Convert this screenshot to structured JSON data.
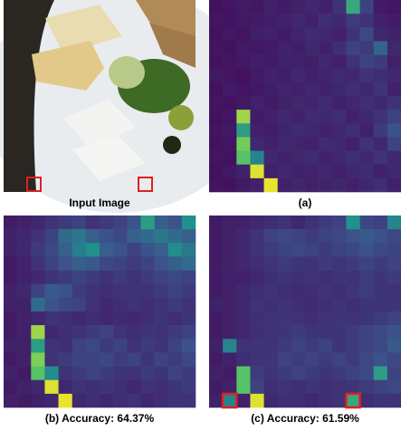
{
  "panels": [
    {
      "caption": "Input Image"
    },
    {
      "caption": "(a)",
      "grid": [
        [
          0.05,
          0.06,
          0.08,
          0.07,
          0.1,
          0.08,
          0.1,
          0.12,
          0.1,
          0.15,
          0.6,
          0.2,
          0.08,
          0.06
        ],
        [
          0.06,
          0.05,
          0.07,
          0.08,
          0.09,
          0.1,
          0.12,
          0.1,
          0.14,
          0.12,
          0.18,
          0.15,
          0.1,
          0.08
        ],
        [
          0.05,
          0.07,
          0.06,
          0.09,
          0.1,
          0.08,
          0.11,
          0.13,
          0.12,
          0.1,
          0.15,
          0.22,
          0.12,
          0.1
        ],
        [
          0.06,
          0.05,
          0.08,
          0.07,
          0.08,
          0.1,
          0.09,
          0.12,
          0.1,
          0.14,
          0.2,
          0.18,
          0.32,
          0.12
        ],
        [
          0.05,
          0.06,
          0.07,
          0.09,
          0.08,
          0.1,
          0.1,
          0.09,
          0.12,
          0.1,
          0.15,
          0.2,
          0.18,
          0.1
        ],
        [
          0.07,
          0.06,
          0.05,
          0.08,
          0.1,
          0.09,
          0.12,
          0.1,
          0.11,
          0.13,
          0.12,
          0.15,
          0.14,
          0.12
        ],
        [
          0.05,
          0.08,
          0.06,
          0.07,
          0.09,
          0.11,
          0.1,
          0.12,
          0.1,
          0.12,
          0.14,
          0.12,
          0.16,
          0.1
        ],
        [
          0.06,
          0.05,
          0.07,
          0.1,
          0.08,
          0.1,
          0.12,
          0.11,
          0.13,
          0.1,
          0.12,
          0.14,
          0.12,
          0.15
        ],
        [
          0.05,
          0.06,
          0.85,
          0.08,
          0.1,
          0.12,
          0.1,
          0.13,
          0.12,
          0.14,
          0.1,
          0.12,
          0.15,
          0.2
        ],
        [
          0.06,
          0.07,
          0.55,
          0.1,
          0.09,
          0.11,
          0.13,
          0.12,
          0.1,
          0.12,
          0.14,
          0.1,
          0.18,
          0.25
        ],
        [
          0.05,
          0.06,
          0.78,
          0.12,
          0.1,
          0.12,
          0.11,
          0.1,
          0.13,
          0.12,
          0.1,
          0.15,
          0.12,
          0.2
        ],
        [
          0.06,
          0.05,
          0.72,
          0.45,
          0.12,
          0.1,
          0.12,
          0.13,
          0.1,
          0.12,
          0.14,
          0.12,
          0.15,
          0.12
        ],
        [
          0.05,
          0.07,
          0.1,
          0.95,
          0.1,
          0.12,
          0.1,
          0.11,
          0.12,
          0.1,
          0.12,
          0.13,
          0.1,
          0.12
        ],
        [
          0.06,
          0.05,
          0.08,
          0.1,
          0.97,
          0.1,
          0.12,
          0.1,
          0.11,
          0.12,
          0.1,
          0.12,
          0.14,
          0.1
        ]
      ]
    },
    {
      "caption": "(b) Accuracy: 64.37%",
      "grid": [
        [
          0.08,
          0.1,
          0.12,
          0.15,
          0.18,
          0.2,
          0.15,
          0.18,
          0.2,
          0.25,
          0.55,
          0.3,
          0.25,
          0.5
        ],
        [
          0.1,
          0.12,
          0.15,
          0.2,
          0.35,
          0.4,
          0.3,
          0.25,
          0.22,
          0.3,
          0.35,
          0.4,
          0.35,
          0.3
        ],
        [
          0.1,
          0.12,
          0.18,
          0.22,
          0.3,
          0.42,
          0.5,
          0.3,
          0.25,
          0.2,
          0.25,
          0.3,
          0.48,
          0.4
        ],
        [
          0.08,
          0.1,
          0.15,
          0.2,
          0.25,
          0.3,
          0.28,
          0.22,
          0.2,
          0.18,
          0.2,
          0.25,
          0.3,
          0.35
        ],
        [
          0.08,
          0.1,
          0.12,
          0.15,
          0.18,
          0.2,
          0.18,
          0.15,
          0.18,
          0.15,
          0.18,
          0.2,
          0.22,
          0.2
        ],
        [
          0.1,
          0.12,
          0.2,
          0.28,
          0.25,
          0.18,
          0.15,
          0.14,
          0.15,
          0.16,
          0.15,
          0.18,
          0.2,
          0.18
        ],
        [
          0.1,
          0.1,
          0.35,
          0.25,
          0.22,
          0.2,
          0.15,
          0.12,
          0.14,
          0.15,
          0.14,
          0.15,
          0.18,
          0.15
        ],
        [
          0.08,
          0.1,
          0.12,
          0.15,
          0.14,
          0.12,
          0.14,
          0.12,
          0.13,
          0.12,
          0.14,
          0.16,
          0.14,
          0.16
        ],
        [
          0.08,
          0.1,
          0.85,
          0.12,
          0.14,
          0.15,
          0.18,
          0.2,
          0.15,
          0.14,
          0.16,
          0.15,
          0.18,
          0.2
        ],
        [
          0.1,
          0.1,
          0.55,
          0.15,
          0.14,
          0.2,
          0.22,
          0.18,
          0.2,
          0.15,
          0.18,
          0.16,
          0.2,
          0.25
        ],
        [
          0.08,
          0.1,
          0.8,
          0.15,
          0.18,
          0.2,
          0.2,
          0.22,
          0.18,
          0.2,
          0.16,
          0.2,
          0.18,
          0.22
        ],
        [
          0.1,
          0.08,
          0.72,
          0.48,
          0.15,
          0.18,
          0.2,
          0.18,
          0.16,
          0.15,
          0.18,
          0.16,
          0.2,
          0.18
        ],
        [
          0.08,
          0.1,
          0.12,
          0.95,
          0.12,
          0.15,
          0.14,
          0.16,
          0.14,
          0.12,
          0.15,
          0.14,
          0.16,
          0.18
        ],
        [
          0.1,
          0.08,
          0.1,
          0.12,
          0.97,
          0.12,
          0.14,
          0.12,
          0.14,
          0.15,
          0.12,
          0.14,
          0.16,
          0.15
        ]
      ]
    },
    {
      "caption": "(c) Accuracy: 61.59%",
      "grid": [
        [
          0.08,
          0.1,
          0.1,
          0.12,
          0.14,
          0.15,
          0.12,
          0.15,
          0.18,
          0.2,
          0.5,
          0.22,
          0.2,
          0.45
        ],
        [
          0.08,
          0.1,
          0.12,
          0.15,
          0.2,
          0.22,
          0.2,
          0.18,
          0.2,
          0.22,
          0.25,
          0.28,
          0.25,
          0.22
        ],
        [
          0.08,
          0.1,
          0.12,
          0.15,
          0.18,
          0.2,
          0.22,
          0.2,
          0.18,
          0.2,
          0.22,
          0.25,
          0.22,
          0.2
        ],
        [
          0.08,
          0.1,
          0.12,
          0.14,
          0.16,
          0.18,
          0.16,
          0.15,
          0.18,
          0.16,
          0.18,
          0.2,
          0.18,
          0.2
        ],
        [
          0.08,
          0.1,
          0.1,
          0.12,
          0.14,
          0.16,
          0.14,
          0.15,
          0.14,
          0.16,
          0.15,
          0.18,
          0.16,
          0.18
        ],
        [
          0.08,
          0.1,
          0.12,
          0.14,
          0.15,
          0.14,
          0.13,
          0.14,
          0.15,
          0.14,
          0.16,
          0.18,
          0.16,
          0.15
        ],
        [
          0.1,
          0.1,
          0.12,
          0.15,
          0.14,
          0.15,
          0.14,
          0.13,
          0.14,
          0.15,
          0.14,
          0.16,
          0.15,
          0.16
        ],
        [
          0.08,
          0.1,
          0.12,
          0.14,
          0.15,
          0.16,
          0.15,
          0.14,
          0.15,
          0.16,
          0.15,
          0.16,
          0.18,
          0.2
        ],
        [
          0.08,
          0.1,
          0.12,
          0.14,
          0.15,
          0.16,
          0.18,
          0.16,
          0.15,
          0.16,
          0.18,
          0.2,
          0.22,
          0.25
        ],
        [
          0.1,
          0.45,
          0.15,
          0.16,
          0.15,
          0.18,
          0.2,
          0.18,
          0.2,
          0.16,
          0.18,
          0.2,
          0.22,
          0.28
        ],
        [
          0.08,
          0.1,
          0.14,
          0.15,
          0.16,
          0.2,
          0.18,
          0.2,
          0.18,
          0.2,
          0.18,
          0.22,
          0.25,
          0.22
        ],
        [
          0.1,
          0.08,
          0.72,
          0.18,
          0.15,
          0.18,
          0.2,
          0.18,
          0.16,
          0.18,
          0.2,
          0.22,
          0.55,
          0.2
        ],
        [
          0.08,
          0.1,
          0.72,
          0.2,
          0.14,
          0.15,
          0.14,
          0.16,
          0.14,
          0.15,
          0.16,
          0.18,
          0.2,
          0.22
        ],
        [
          0.1,
          0.45,
          0.1,
          0.95,
          0.12,
          0.14,
          0.14,
          0.12,
          0.14,
          0.15,
          0.6,
          0.14,
          0.16,
          0.15
        ]
      ]
    }
  ]
}
